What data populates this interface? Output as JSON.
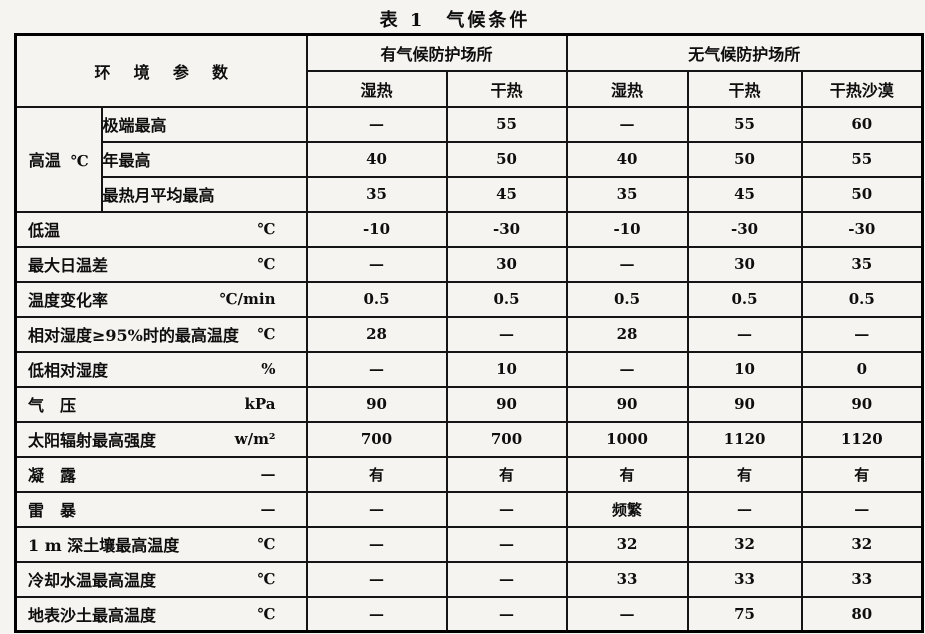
{
  "title": "表 1　气候条件",
  "table": {
    "param_header": "环 境 参 数",
    "group_headers": [
      {
        "label": "有气候防护场所"
      },
      {
        "label": "无气候防护场所"
      }
    ],
    "sub_headers": [
      "湿热",
      "干热",
      "湿热",
      "干热",
      "干热沙漠"
    ],
    "rows": [
      {
        "label": "高温",
        "unit": "℃",
        "subrows": [
          {
            "label": "极端最高",
            "values": [
              "—",
              "55",
              "—",
              "55",
              "60"
            ]
          },
          {
            "label": "年最高",
            "values": [
              "40",
              "50",
              "40",
              "50",
              "55"
            ]
          },
          {
            "label": "最热月平均最高",
            "values": [
              "35",
              "45",
              "35",
              "45",
              "50"
            ]
          }
        ]
      },
      {
        "label": "低温",
        "unit": "℃",
        "values": [
          "-10",
          "-30",
          "-10",
          "-30",
          "-30"
        ]
      },
      {
        "label": "最大日温差",
        "unit": "℃",
        "values": [
          "—",
          "30",
          "—",
          "30",
          "35"
        ]
      },
      {
        "label": "温度变化率",
        "unit": "℃/min",
        "values": [
          "0.5",
          "0.5",
          "0.5",
          "0.5",
          "0.5"
        ]
      },
      {
        "label": "相对湿度≥95%时的最高温度",
        "unit": "℃",
        "values": [
          "28",
          "—",
          "28",
          "—",
          "—"
        ]
      },
      {
        "label": "低相对湿度",
        "unit": "%",
        "values": [
          "—",
          "10",
          "—",
          "10",
          "0"
        ]
      },
      {
        "label": "气　压",
        "unit": "kPa",
        "values": [
          "90",
          "90",
          "90",
          "90",
          "90"
        ]
      },
      {
        "label": "太阳辐射最高强度",
        "unit": "w/m²",
        "values": [
          "700",
          "700",
          "1000",
          "1120",
          "1120"
        ]
      },
      {
        "label": "凝　露",
        "unit": "—",
        "values": [
          "有",
          "有",
          "有",
          "有",
          "有"
        ]
      },
      {
        "label": "雷　暴",
        "unit": "—",
        "values": [
          "—",
          "—",
          "频繁",
          "—",
          "—"
        ]
      },
      {
        "label": "1 m 深土壤最高温度",
        "unit": "℃",
        "values": [
          "—",
          "—",
          "32",
          "32",
          "32"
        ]
      },
      {
        "label": "冷却水温最高温度",
        "unit": "℃",
        "values": [
          "—",
          "—",
          "33",
          "33",
          "33"
        ]
      },
      {
        "label": "地表沙土最高温度",
        "unit": "℃",
        "values": [
          "—",
          "—",
          "—",
          "75",
          "80"
        ]
      }
    ]
  }
}
